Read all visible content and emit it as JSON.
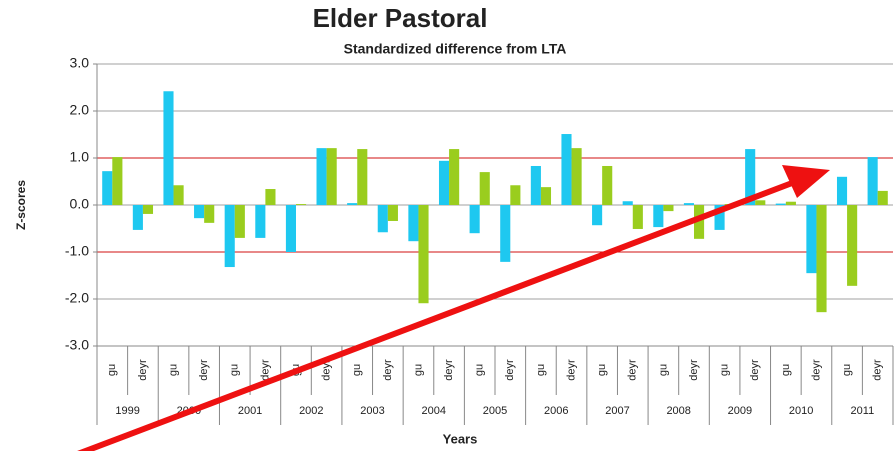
{
  "chart_data": {
    "type": "bar",
    "title": "Elder Pastoral",
    "subtitle": "Standardized difference from LTA",
    "y_label": "Z-scores",
    "x_label": "Years",
    "categories": [
      "gu",
      "deyr",
      "gu",
      "deyr",
      "gu",
      "deyr",
      "gu",
      "deyr",
      "gu",
      "deyr",
      "gu",
      "deyr",
      "gu",
      "deyr",
      "gu",
      "deyr",
      "gu",
      "deyr",
      "gu",
      "deyr",
      "gu",
      "deyr",
      "gu",
      "deyr",
      "gu",
      "deyr"
    ],
    "groups": [
      "1999",
      "2000",
      "2001",
      "2002",
      "2003",
      "2004",
      "2005",
      "2006",
      "2007",
      "2008",
      "2009",
      "2010",
      "2011"
    ],
    "series": [
      {
        "color": "#1ec8f0",
        "values": [
          0.72,
          -0.53,
          2.42,
          -0.28,
          -1.32,
          -0.7,
          -1.0,
          1.21,
          0.04,
          -0.58,
          -0.77,
          0.94,
          -0.6,
          -1.21,
          0.83,
          1.51,
          -0.43,
          0.08,
          -0.47,
          0.04,
          -0.53,
          1.19,
          0.03,
          -1.45,
          0.6,
          1.02
        ]
      },
      {
        "color": "#9acd1e",
        "values": [
          1.02,
          -0.19,
          0.42,
          -0.38,
          -0.7,
          0.34,
          0.02,
          1.21,
          1.19,
          -0.34,
          -2.09,
          1.19,
          0.7,
          0.42,
          0.38,
          1.21,
          0.83,
          -0.51,
          -0.13,
          -0.72,
          0.02,
          0.1,
          0.07,
          -2.28,
          -1.72,
          0.3
        ]
      }
    ],
    "ylim": [
      -3,
      3
    ],
    "yticks": [
      {
        "value": -3,
        "label": "-3.0"
      },
      {
        "value": -2,
        "label": "-2.0"
      },
      {
        "value": -1,
        "label": "-1.0"
      },
      {
        "value": 0,
        "label": "0.0"
      },
      {
        "value": 1,
        "label": "1.0"
      },
      {
        "value": 2,
        "label": "2.0"
      },
      {
        "value": 3,
        "label": "3.0"
      }
    ],
    "grid": true,
    "grid_color": "#a0a0a0",
    "reference_lines": [
      -1,
      1
    ],
    "reference_color": "#d01010"
  }
}
